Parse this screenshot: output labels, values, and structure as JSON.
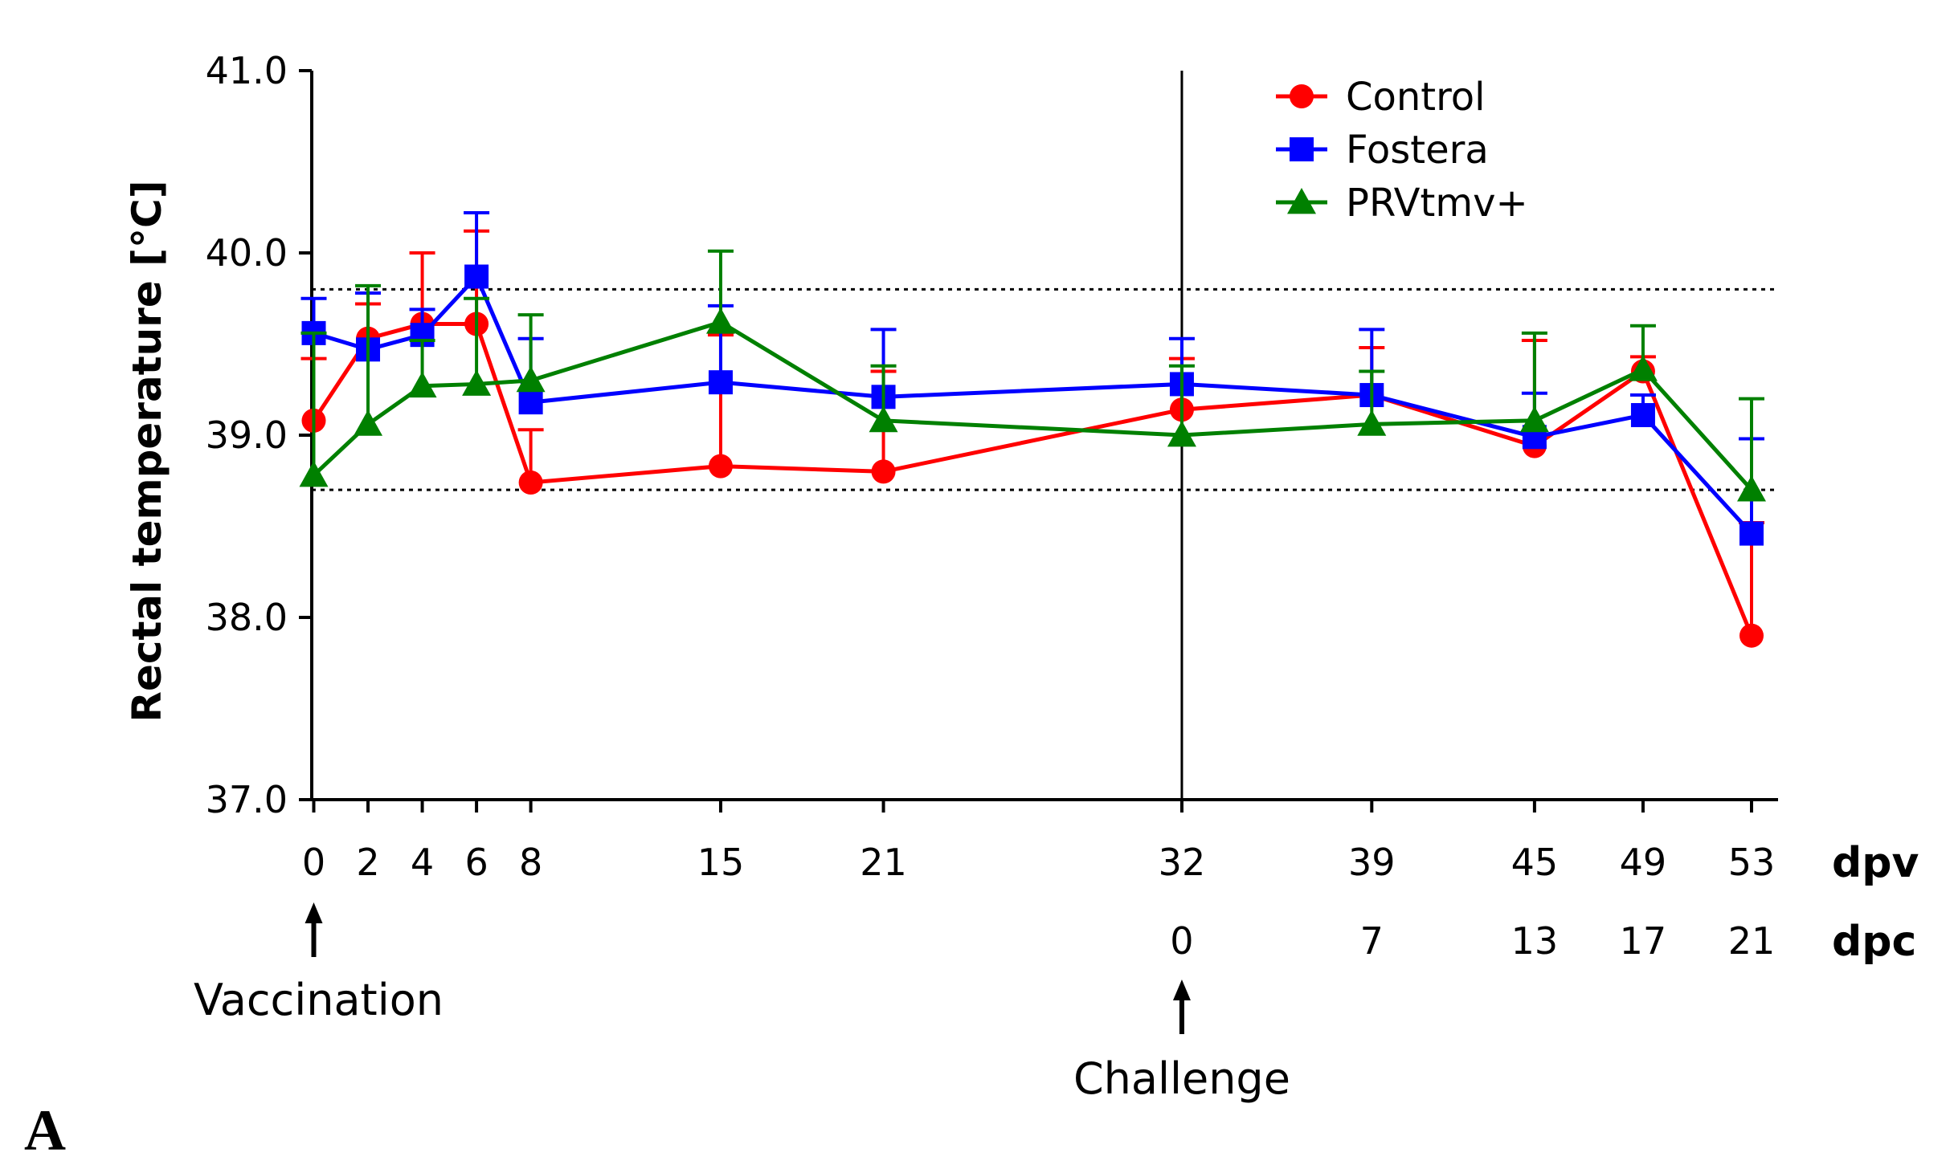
{
  "chart_data": {
    "type": "line",
    "title": "",
    "ylabel": "Rectal temperature [°C]",
    "ylim": [
      37.0,
      41.0
    ],
    "yticks": [
      "37.0",
      "38.0",
      "39.0",
      "40.0",
      "41.0"
    ],
    "x_dpv": [
      0,
      2,
      4,
      6,
      8,
      15,
      21,
      32,
      39,
      45,
      49,
      53
    ],
    "x_dpc": [
      0,
      7,
      13,
      17,
      21
    ],
    "x_dpc_at_dpv": [
      32,
      39,
      45,
      49,
      53
    ],
    "xlabel_dpv": "dpv",
    "xlabel_dpc": "dpc",
    "reference_lines": [
      39.8,
      38.7
    ],
    "series": [
      {
        "name": "Control",
        "color": "#ff0000",
        "marker": "circle",
        "values": [
          39.08,
          39.53,
          39.61,
          39.61,
          38.74,
          38.83,
          38.8,
          39.14,
          39.22,
          38.94,
          39.35,
          37.9
        ],
        "err_upper": [
          39.42,
          39.72,
          40.0,
          40.12,
          39.03,
          39.55,
          39.35,
          39.42,
          39.48,
          39.52,
          39.43,
          38.52
        ]
      },
      {
        "name": "Fostera",
        "color": "#0000ff",
        "marker": "square",
        "values": [
          39.56,
          39.47,
          39.55,
          39.87,
          39.18,
          39.29,
          39.21,
          39.28,
          39.22,
          38.99,
          39.11,
          38.46
        ],
        "err_upper": [
          39.75,
          39.78,
          39.69,
          40.22,
          39.53,
          39.71,
          39.58,
          39.53,
          39.58,
          39.23,
          39.22,
          38.98
        ]
      },
      {
        "name": "PRVtmv+",
        "color": "#008000",
        "marker": "triangle",
        "values": [
          38.78,
          39.06,
          39.27,
          39.28,
          39.3,
          39.62,
          39.08,
          39.0,
          39.06,
          39.08,
          39.36,
          38.7
        ],
        "err_upper": [
          39.56,
          39.82,
          39.52,
          39.75,
          39.66,
          40.01,
          39.38,
          39.38,
          39.35,
          39.56,
          39.6,
          39.2
        ]
      }
    ],
    "annotations": {
      "vaccination": "Vaccination",
      "vaccination_at_dpv": 0,
      "challenge": "Challenge",
      "challenge_at_dpv": 32
    },
    "panel_label": "A",
    "legend_position": "top-right"
  }
}
